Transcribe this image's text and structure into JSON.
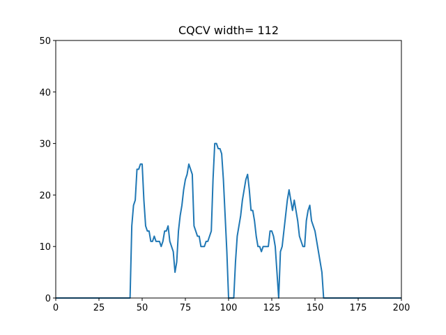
{
  "chart_data": {
    "type": "line",
    "title": "CQCV width= 112",
    "xlabel": "",
    "ylabel": "",
    "xlim": [
      0,
      200
    ],
    "ylim": [
      0,
      50
    ],
    "xticks": [
      0,
      25,
      50,
      75,
      100,
      125,
      150,
      175,
      200
    ],
    "yticks": [
      0,
      10,
      20,
      30,
      40,
      50
    ],
    "grid": false,
    "line_color": "#1f77b4",
    "series": [
      {
        "points": [
          [
            0,
            0
          ],
          [
            43,
            0
          ],
          [
            44,
            14
          ],
          [
            45,
            18
          ],
          [
            46,
            19
          ],
          [
            47,
            25
          ],
          [
            48,
            25
          ],
          [
            49,
            26
          ],
          [
            50,
            26
          ],
          [
            51,
            19
          ],
          [
            52,
            14
          ],
          [
            53,
            13
          ],
          [
            54,
            13
          ],
          [
            55,
            11
          ],
          [
            56,
            11
          ],
          [
            57,
            12
          ],
          [
            58,
            11
          ],
          [
            59,
            11
          ],
          [
            60,
            11
          ],
          [
            61,
            10
          ],
          [
            62,
            11
          ],
          [
            63,
            13
          ],
          [
            64,
            13
          ],
          [
            65,
            14
          ],
          [
            66,
            11
          ],
          [
            67,
            10
          ],
          [
            68,
            9
          ],
          [
            69,
            5
          ],
          [
            70,
            7
          ],
          [
            71,
            13
          ],
          [
            72,
            16
          ],
          [
            73,
            18
          ],
          [
            74,
            21
          ],
          [
            75,
            23
          ],
          [
            76,
            24
          ],
          [
            77,
            26
          ],
          [
            78,
            25
          ],
          [
            79,
            24
          ],
          [
            80,
            14
          ],
          [
            81,
            13
          ],
          [
            82,
            12
          ],
          [
            83,
            12
          ],
          [
            84,
            10
          ],
          [
            85,
            10
          ],
          [
            86,
            10
          ],
          [
            87,
            11
          ],
          [
            88,
            11
          ],
          [
            89,
            12
          ],
          [
            90,
            13
          ],
          [
            91,
            23
          ],
          [
            92,
            30
          ],
          [
            93,
            30
          ],
          [
            94,
            29
          ],
          [
            95,
            29
          ],
          [
            96,
            28
          ],
          [
            97,
            23
          ],
          [
            98,
            16
          ],
          [
            99,
            9
          ],
          [
            100,
            0
          ],
          [
            101,
            0
          ],
          [
            102,
            0
          ],
          [
            103,
            0
          ],
          [
            104,
            7
          ],
          [
            105,
            12
          ],
          [
            106,
            14
          ],
          [
            107,
            16
          ],
          [
            108,
            19
          ],
          [
            109,
            21
          ],
          [
            110,
            23
          ],
          [
            111,
            24
          ],
          [
            112,
            21
          ],
          [
            113,
            17
          ],
          [
            114,
            17
          ],
          [
            115,
            15
          ],
          [
            116,
            12
          ],
          [
            117,
            10
          ],
          [
            118,
            10
          ],
          [
            119,
            9
          ],
          [
            120,
            10
          ],
          [
            121,
            10
          ],
          [
            122,
            10
          ],
          [
            123,
            10
          ],
          [
            124,
            13
          ],
          [
            125,
            13
          ],
          [
            126,
            12
          ],
          [
            127,
            10
          ],
          [
            128,
            5
          ],
          [
            129,
            0
          ],
          [
            130,
            9
          ],
          [
            131,
            10
          ],
          [
            132,
            13
          ],
          [
            133,
            16
          ],
          [
            134,
            19
          ],
          [
            135,
            21
          ],
          [
            136,
            19
          ],
          [
            137,
            17
          ],
          [
            138,
            19
          ],
          [
            139,
            17
          ],
          [
            140,
            15
          ],
          [
            141,
            12
          ],
          [
            142,
            11
          ],
          [
            143,
            10
          ],
          [
            144,
            10
          ],
          [
            145,
            15
          ],
          [
            146,
            17
          ],
          [
            147,
            18
          ],
          [
            148,
            15
          ],
          [
            149,
            14
          ],
          [
            150,
            13
          ],
          [
            151,
            11
          ],
          [
            152,
            9
          ],
          [
            153,
            7
          ],
          [
            154,
            5
          ],
          [
            155,
            0
          ],
          [
            200,
            0
          ]
        ]
      }
    ]
  }
}
